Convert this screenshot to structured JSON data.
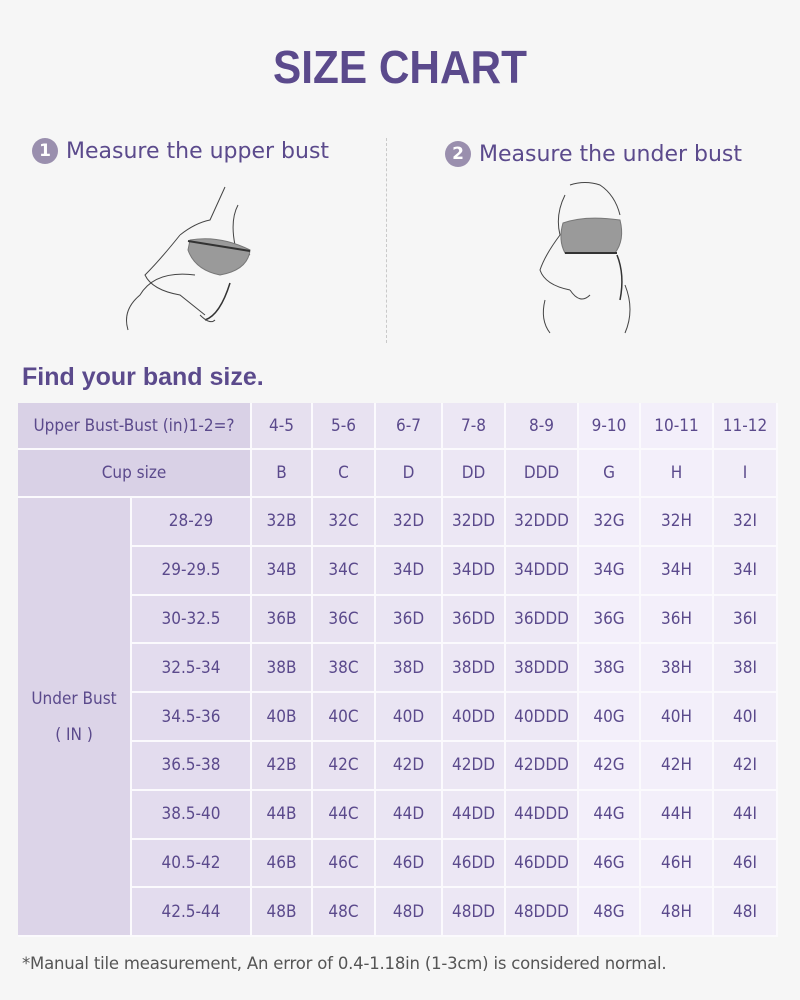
{
  "title": "SIZE CHART",
  "steps": [
    {
      "number": "1",
      "label": "Measure the upper bust"
    },
    {
      "number": "2",
      "label": "Measure the under bust"
    }
  ],
  "band_heading": "Find your band size.",
  "table": {
    "diff_header": "Upper Bust-Bust (in)1-2=?",
    "cup_header": "Cup size",
    "under_bust_label": "Under Bust",
    "under_bust_unit": "( IN )",
    "diffs": [
      "4-5",
      "5-6",
      "6-7",
      "7-8",
      "8-9",
      "9-10",
      "10-11",
      "11-12"
    ],
    "cups": [
      "B",
      "C",
      "D",
      "DD",
      "DDD",
      "G",
      "H",
      "I"
    ],
    "under_bust_ranges": [
      "28-29",
      "29-29.5",
      "30-32.5",
      "32.5-34",
      "34.5-36",
      "36.5-38",
      "38.5-40",
      "40.5-42",
      "42.5-44"
    ],
    "bands": [
      "32",
      "34",
      "36",
      "38",
      "40",
      "42",
      "44",
      "46",
      "48"
    ]
  },
  "note": "*Manual tile measurement, An error of 0.4-1.18in (1-3cm) is considered normal.",
  "colors": {
    "accent": "#5b4a8c",
    "header_bg": "#d9d1e6",
    "background": "#f6f6f6"
  }
}
